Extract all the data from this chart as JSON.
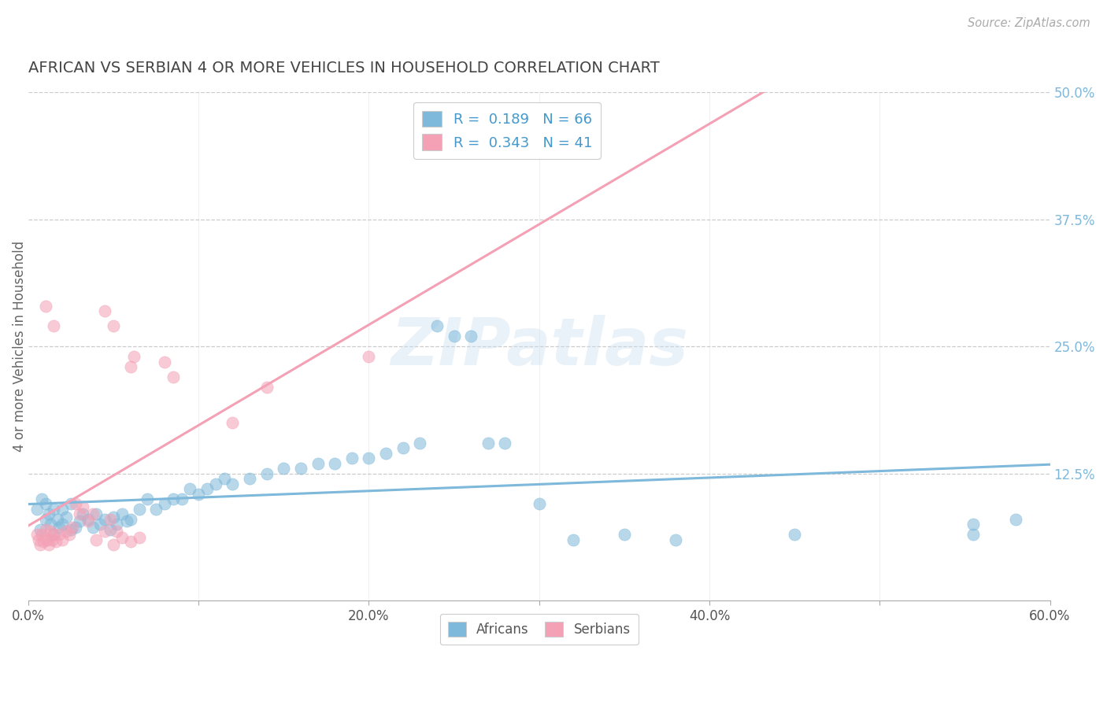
{
  "title": "AFRICAN VS SERBIAN 4 OR MORE VEHICLES IN HOUSEHOLD CORRELATION CHART",
  "source": "Source: ZipAtlas.com",
  "ylabel": "4 or more Vehicles in Household",
  "xlim": [
    0.0,
    0.6
  ],
  "ylim": [
    0.0,
    0.5
  ],
  "xtick_labels": [
    "0.0%",
    "",
    "20.0%",
    "",
    "40.0%",
    "",
    "60.0%"
  ],
  "xtick_positions": [
    0.0,
    0.1,
    0.2,
    0.3,
    0.4,
    0.5,
    0.6
  ],
  "ytick_labels": [
    "12.5%",
    "25.0%",
    "37.5%",
    "50.0%"
  ],
  "ytick_positions": [
    0.125,
    0.25,
    0.375,
    0.5
  ],
  "african_color": "#7EB8DA",
  "serbian_color": "#F4A0B5",
  "african_R": 0.189,
  "african_N": 66,
  "serbian_R": 0.343,
  "serbian_N": 41,
  "background_color": "#ffffff",
  "grid_color": "#cccccc",
  "title_color": "#444444",
  "watermark_text": "ZIPatlas",
  "legend_label_african": "Africans",
  "legend_label_serbian": "Serbians",
  "african_scatter": [
    [
      0.005,
      0.09
    ],
    [
      0.007,
      0.07
    ],
    [
      0.008,
      0.1
    ],
    [
      0.01,
      0.08
    ],
    [
      0.01,
      0.095
    ],
    [
      0.012,
      0.085
    ],
    [
      0.013,
      0.075
    ],
    [
      0.015,
      0.09
    ],
    [
      0.015,
      0.065
    ],
    [
      0.017,
      0.08
    ],
    [
      0.018,
      0.072
    ],
    [
      0.02,
      0.09
    ],
    [
      0.02,
      0.075
    ],
    [
      0.022,
      0.082
    ],
    [
      0.025,
      0.07
    ],
    [
      0.025,
      0.095
    ],
    [
      0.028,
      0.072
    ],
    [
      0.03,
      0.078
    ],
    [
      0.032,
      0.085
    ],
    [
      0.035,
      0.08
    ],
    [
      0.038,
      0.072
    ],
    [
      0.04,
      0.085
    ],
    [
      0.042,
      0.075
    ],
    [
      0.045,
      0.08
    ],
    [
      0.048,
      0.07
    ],
    [
      0.05,
      0.082
    ],
    [
      0.052,
      0.075
    ],
    [
      0.055,
      0.085
    ],
    [
      0.058,
      0.078
    ],
    [
      0.06,
      0.08
    ],
    [
      0.065,
      0.09
    ],
    [
      0.07,
      0.1
    ],
    [
      0.075,
      0.09
    ],
    [
      0.08,
      0.095
    ],
    [
      0.085,
      0.1
    ],
    [
      0.09,
      0.1
    ],
    [
      0.095,
      0.11
    ],
    [
      0.1,
      0.105
    ],
    [
      0.105,
      0.11
    ],
    [
      0.11,
      0.115
    ],
    [
      0.115,
      0.12
    ],
    [
      0.12,
      0.115
    ],
    [
      0.13,
      0.12
    ],
    [
      0.14,
      0.125
    ],
    [
      0.15,
      0.13
    ],
    [
      0.16,
      0.13
    ],
    [
      0.17,
      0.135
    ],
    [
      0.18,
      0.135
    ],
    [
      0.19,
      0.14
    ],
    [
      0.2,
      0.14
    ],
    [
      0.21,
      0.145
    ],
    [
      0.22,
      0.15
    ],
    [
      0.23,
      0.155
    ],
    [
      0.24,
      0.27
    ],
    [
      0.25,
      0.26
    ],
    [
      0.26,
      0.26
    ],
    [
      0.27,
      0.155
    ],
    [
      0.28,
      0.155
    ],
    [
      0.3,
      0.095
    ],
    [
      0.32,
      0.06
    ],
    [
      0.35,
      0.065
    ],
    [
      0.38,
      0.06
    ],
    [
      0.45,
      0.065
    ],
    [
      0.555,
      0.065
    ],
    [
      0.555,
      0.075
    ],
    [
      0.58,
      0.08
    ]
  ],
  "serbian_scatter": [
    [
      0.005,
      0.065
    ],
    [
      0.006,
      0.06
    ],
    [
      0.007,
      0.055
    ],
    [
      0.008,
      0.065
    ],
    [
      0.009,
      0.058
    ],
    [
      0.01,
      0.07
    ],
    [
      0.011,
      0.06
    ],
    [
      0.012,
      0.055
    ],
    [
      0.013,
      0.068
    ],
    [
      0.014,
      0.06
    ],
    [
      0.015,
      0.065
    ],
    [
      0.016,
      0.058
    ],
    [
      0.018,
      0.065
    ],
    [
      0.02,
      0.06
    ],
    [
      0.022,
      0.068
    ],
    [
      0.024,
      0.065
    ],
    [
      0.026,
      0.072
    ],
    [
      0.028,
      0.095
    ],
    [
      0.03,
      0.085
    ],
    [
      0.032,
      0.092
    ],
    [
      0.035,
      0.078
    ],
    [
      0.038,
      0.085
    ],
    [
      0.04,
      0.06
    ],
    [
      0.045,
      0.068
    ],
    [
      0.048,
      0.08
    ],
    [
      0.05,
      0.055
    ],
    [
      0.052,
      0.068
    ],
    [
      0.055,
      0.062
    ],
    [
      0.06,
      0.058
    ],
    [
      0.065,
      0.062
    ],
    [
      0.01,
      0.29
    ],
    [
      0.015,
      0.27
    ],
    [
      0.045,
      0.285
    ],
    [
      0.05,
      0.27
    ],
    [
      0.06,
      0.23
    ],
    [
      0.062,
      0.24
    ],
    [
      0.08,
      0.235
    ],
    [
      0.085,
      0.22
    ],
    [
      0.12,
      0.175
    ],
    [
      0.14,
      0.21
    ],
    [
      0.2,
      0.24
    ]
  ]
}
